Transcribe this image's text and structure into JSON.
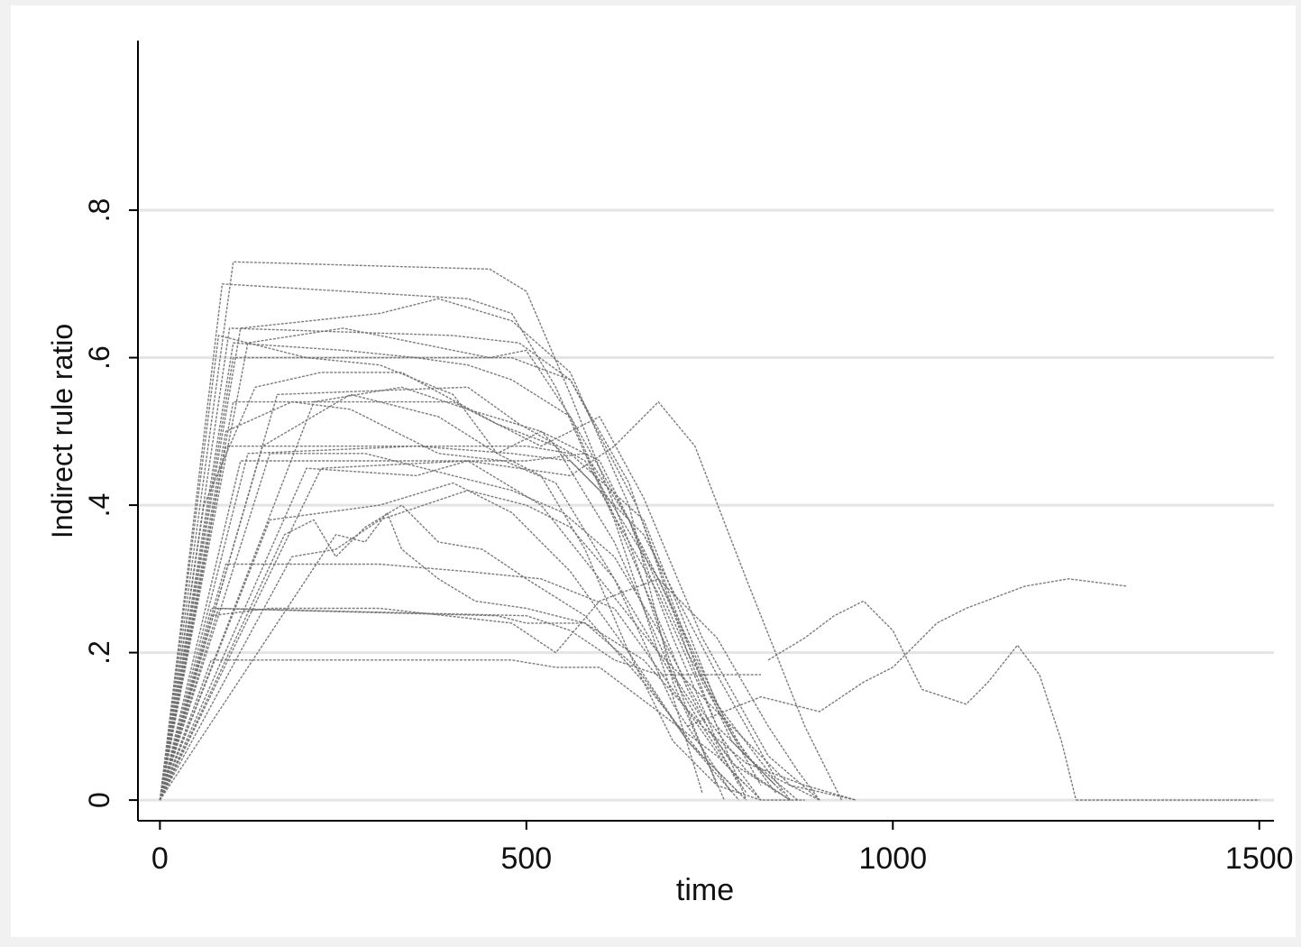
{
  "chart_data": {
    "type": "line",
    "title": "",
    "xlabel": "time",
    "ylabel": "Indirect rule ratio",
    "xlim": [
      -30,
      1520
    ],
    "ylim": [
      -0.028,
      1.03
    ],
    "xticks": [
      0,
      500,
      1000,
      1500
    ],
    "xtick_labels": [
      "0",
      "500",
      "1000",
      "1500"
    ],
    "yticks": [
      0,
      0.2,
      0.4,
      0.6,
      0.8
    ],
    "ytick_labels": [
      "0",
      ".2",
      ".4",
      ".6",
      ".8"
    ],
    "grid": true,
    "legend": "none",
    "colors": {
      "series": "#6e6e6e",
      "grid": "#e4e4e4",
      "plot_bg": "#ffffff",
      "page_bg": "#f1f1f1"
    },
    "series": [
      {
        "x": [
          0,
          100,
          450,
          500,
          560,
          640,
          720,
          760
        ],
        "y": [
          0,
          0.73,
          0.72,
          0.69,
          0.55,
          0.35,
          0.12,
          0.02
        ]
      },
      {
        "x": [
          0,
          85,
          420,
          480,
          540,
          620,
          700,
          740
        ],
        "y": [
          0,
          0.7,
          0.68,
          0.66,
          0.56,
          0.38,
          0.14,
          0.01
        ]
      },
      {
        "x": [
          0,
          110,
          300,
          380,
          480,
          560,
          640,
          700,
          770
        ],
        "y": [
          0,
          0.64,
          0.66,
          0.68,
          0.65,
          0.58,
          0.4,
          0.16,
          0.0
        ]
      },
      {
        "x": [
          0,
          95,
          400,
          490,
          560,
          640,
          720,
          800
        ],
        "y": [
          0,
          0.64,
          0.63,
          0.62,
          0.57,
          0.43,
          0.2,
          0.0
        ]
      },
      {
        "x": [
          0,
          120,
          250,
          450,
          500,
          560,
          640,
          720,
          790
        ],
        "y": [
          0,
          0.62,
          0.64,
          0.6,
          0.61,
          0.52,
          0.34,
          0.15,
          0.02
        ]
      },
      {
        "x": [
          0,
          100,
          480,
          560,
          650,
          740,
          820
        ],
        "y": [
          0,
          0.6,
          0.6,
          0.57,
          0.4,
          0.16,
          0.02
        ]
      },
      {
        "x": [
          0,
          160,
          420,
          490,
          580,
          680,
          780,
          850
        ],
        "y": [
          0,
          0.55,
          0.56,
          0.51,
          0.46,
          0.3,
          0.08,
          0.01
        ]
      },
      {
        "x": [
          0,
          210,
          330,
          420,
          520,
          600,
          680,
          760,
          840
        ],
        "y": [
          0,
          0.54,
          0.56,
          0.53,
          0.5,
          0.42,
          0.28,
          0.1,
          0.02
        ]
      },
      {
        "x": [
          0,
          100,
          400,
          520,
          600,
          660,
          740,
          830,
          900
        ],
        "y": [
          0,
          0.54,
          0.54,
          0.48,
          0.52,
          0.41,
          0.22,
          0.06,
          0.0
        ]
      },
      {
        "x": [
          0,
          90,
          500,
          560,
          660,
          760,
          860
        ],
        "y": [
          0,
          0.48,
          0.48,
          0.47,
          0.38,
          0.13,
          0.0
        ]
      },
      {
        "x": [
          0,
          120,
          350,
          480,
          560,
          660,
          760,
          840,
          900
        ],
        "y": [
          0,
          0.47,
          0.48,
          0.47,
          0.46,
          0.36,
          0.17,
          0.03,
          0.0
        ]
      },
      {
        "x": [
          0,
          110,
          400,
          500,
          580,
          640,
          700,
          760,
          820
        ],
        "y": [
          0,
          0.46,
          0.46,
          0.46,
          0.47,
          0.38,
          0.22,
          0.08,
          0.0
        ]
      },
      {
        "x": [
          0,
          220,
          420,
          490,
          560,
          620,
          680,
          730,
          800,
          880,
          930
        ],
        "y": [
          0,
          0.45,
          0.46,
          0.45,
          0.44,
          0.48,
          0.54,
          0.48,
          0.3,
          0.1,
          0.0
        ]
      },
      {
        "x": [
          0,
          200,
          350,
          420,
          520,
          600,
          680,
          780,
          860,
          950
        ],
        "y": [
          0,
          0.45,
          0.44,
          0.46,
          0.4,
          0.3,
          0.2,
          0.1,
          0.02,
          0.0
        ]
      },
      {
        "x": [
          0,
          150,
          300,
          400,
          480,
          560,
          640,
          720,
          790
        ],
        "y": [
          0,
          0.38,
          0.4,
          0.43,
          0.39,
          0.31,
          0.2,
          0.08,
          0.0
        ]
      },
      {
        "x": [
          0,
          170,
          210,
          240,
          280,
          330,
          380,
          440,
          500,
          580,
          660,
          740,
          800
        ],
        "y": [
          0,
          0.36,
          0.38,
          0.33,
          0.37,
          0.4,
          0.35,
          0.34,
          0.3,
          0.25,
          0.16,
          0.06,
          0.0
        ]
      },
      {
        "x": [
          0,
          240,
          280,
          310,
          330,
          380,
          430,
          500,
          580,
          650,
          720,
          790
        ],
        "y": [
          0,
          0.36,
          0.35,
          0.39,
          0.34,
          0.3,
          0.27,
          0.26,
          0.24,
          0.18,
          0.08,
          0.01
        ]
      },
      {
        "x": [
          0,
          90,
          300,
          420,
          520,
          620,
          700,
          770,
          820
        ],
        "y": [
          0,
          0.32,
          0.32,
          0.31,
          0.3,
          0.26,
          0.15,
          0.05,
          0.0
        ]
      },
      {
        "x": [
          0,
          70,
          460,
          500,
          580,
          660,
          740,
          800
        ],
        "y": [
          0,
          0.26,
          0.25,
          0.24,
          0.24,
          0.19,
          0.1,
          0.01
        ]
      },
      {
        "x": [
          0,
          80,
          500,
          560,
          620,
          680,
          820
        ],
        "y": [
          0,
          0.26,
          0.25,
          0.23,
          0.19,
          0.17,
          0.17
        ]
      },
      {
        "x": [
          0,
          70,
          480,
          540,
          600,
          680,
          760,
          800
        ],
        "y": [
          0,
          0.19,
          0.19,
          0.18,
          0.18,
          0.12,
          0.06,
          0.02
        ]
      },
      {
        "x": [
          0,
          70,
          150,
          300,
          480,
          540,
          600,
          680,
          760,
          830,
          870,
          900
        ],
        "y": [
          0,
          0.25,
          0.26,
          0.26,
          0.24,
          0.2,
          0.27,
          0.3,
          0.22,
          0.1,
          0.04,
          0.0
        ]
      },
      {
        "x": [
          830,
          880,
          920,
          960,
          1000,
          1040,
          1070,
          1100,
          1130,
          1170,
          1200,
          1230,
          1250
        ],
        "y": [
          0.19,
          0.22,
          0.25,
          0.27,
          0.23,
          0.15,
          0.14,
          0.13,
          0.16,
          0.21,
          0.17,
          0.08,
          0.0
        ]
      },
      {
        "x": [
          0,
          80,
          200,
          300,
          400,
          460,
          520,
          580,
          640,
          700,
          760,
          820,
          880
        ],
        "y": [
          0,
          0.63,
          0.6,
          0.59,
          0.55,
          0.47,
          0.44,
          0.34,
          0.2,
          0.08,
          0.02,
          0.0,
          0.0
        ]
      },
      {
        "x": [
          0,
          140,
          260,
          380,
          460,
          520,
          600,
          700,
          780,
          840
        ],
        "y": [
          0,
          0.48,
          0.55,
          0.52,
          0.47,
          0.5,
          0.46,
          0.26,
          0.09,
          0.01
        ]
      },
      {
        "x": [
          0,
          60,
          130,
          220,
          330,
          460,
          540,
          620,
          700,
          780,
          860
        ],
        "y": [
          0,
          0.4,
          0.56,
          0.58,
          0.58,
          0.51,
          0.48,
          0.35,
          0.17,
          0.05,
          0.0
        ]
      },
      {
        "x": [
          0,
          100,
          250,
          350,
          420,
          480,
          560,
          640,
          720,
          800,
          870
        ],
        "y": [
          0,
          0.62,
          0.61,
          0.6,
          0.59,
          0.57,
          0.52,
          0.38,
          0.2,
          0.06,
          0.0
        ]
      },
      {
        "x": [
          0,
          90,
          180,
          260,
          380,
          470,
          540,
          620,
          700,
          780
        ],
        "y": [
          0,
          0.5,
          0.54,
          0.53,
          0.47,
          0.46,
          0.43,
          0.3,
          0.13,
          0.01
        ]
      },
      {
        "x": [
          0,
          150,
          280,
          400,
          480,
          550,
          620,
          680,
          740,
          800,
          860
        ],
        "y": [
          0,
          0.47,
          0.47,
          0.44,
          0.42,
          0.39,
          0.33,
          0.23,
          0.12,
          0.04,
          0.0
        ]
      },
      {
        "x": [
          0,
          180,
          240,
          300,
          420,
          500,
          560,
          620,
          680,
          740,
          800,
          880,
          950
        ],
        "y": [
          0,
          0.33,
          0.34,
          0.38,
          0.42,
          0.4,
          0.37,
          0.3,
          0.2,
          0.1,
          0.05,
          0.02,
          0.0
        ]
      },
      {
        "x": [
          720,
          820,
          900,
          960,
          1000,
          1060,
          1100,
          1180,
          1240,
          1320
        ],
        "y": [
          0.1,
          0.14,
          0.12,
          0.16,
          0.18,
          0.24,
          0.26,
          0.29,
          0.3,
          0.29
        ]
      },
      {
        "x": [
          1250,
          1500
        ],
        "y": [
          0,
          0
        ]
      }
    ]
  }
}
